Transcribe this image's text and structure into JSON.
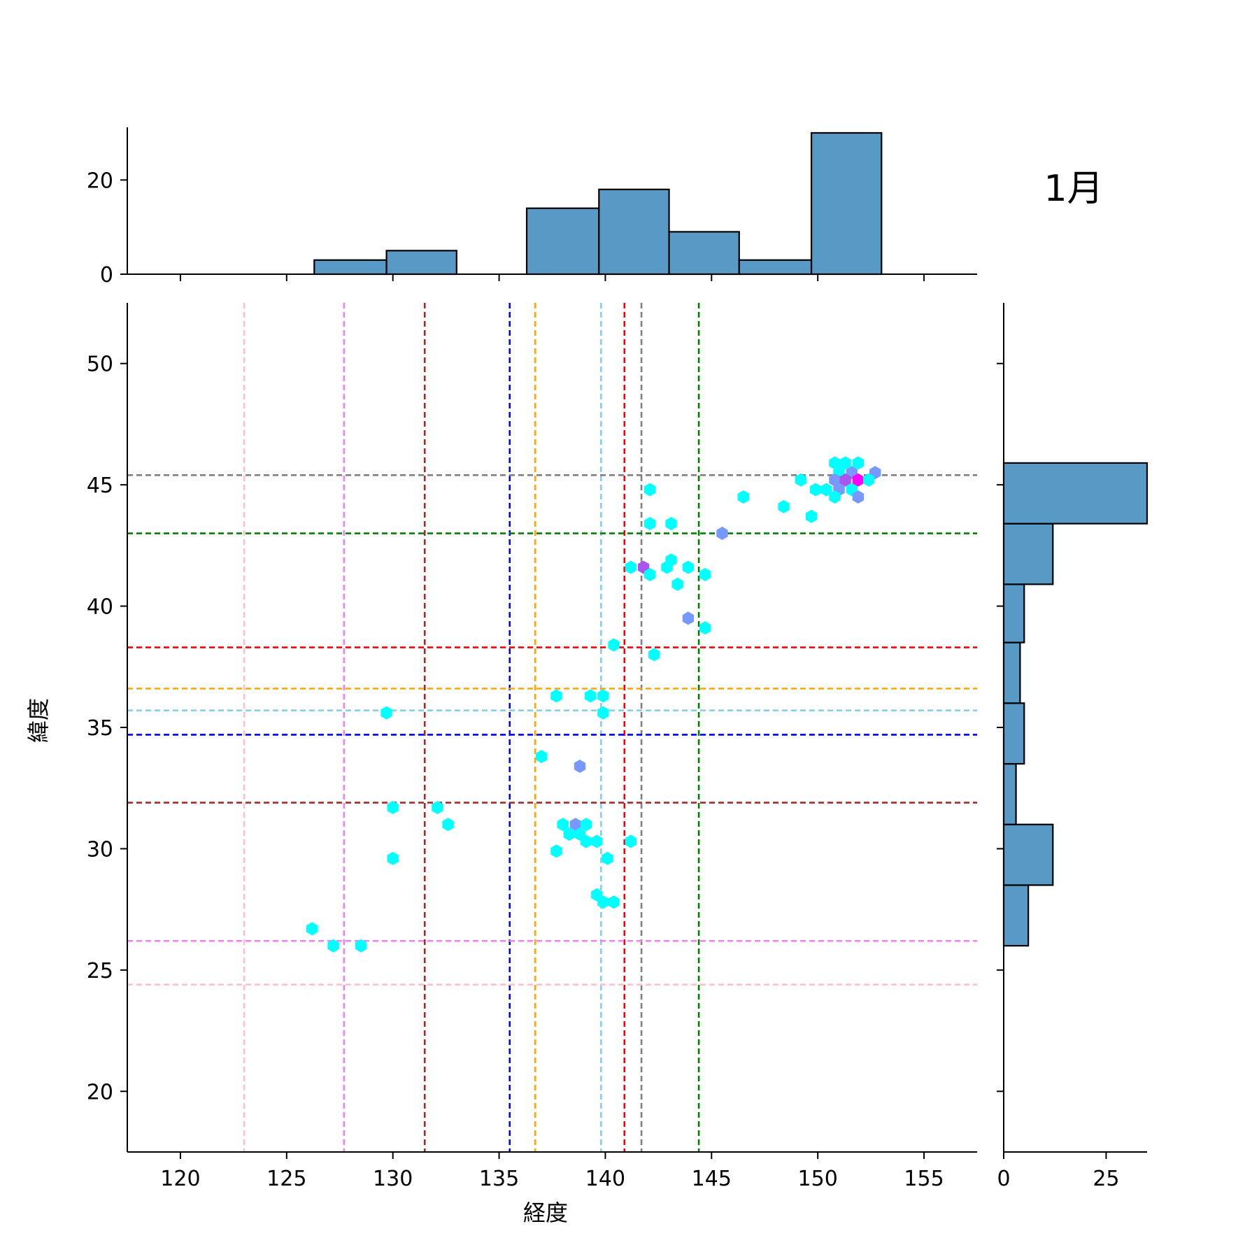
{
  "chart_data": {
    "type": "hexbin-joint",
    "month_label": "1月",
    "xlabel": "経度",
    "ylabel": "緯度",
    "xlim": [
      117.5,
      157.5
    ],
    "ylim": [
      17.5,
      52.5
    ],
    "xticks": [
      "120",
      "125",
      "130",
      "135",
      "140",
      "145",
      "150",
      "155"
    ],
    "yticks": [
      "20",
      "25",
      "30",
      "35",
      "40",
      "45",
      "50"
    ],
    "grid": false,
    "vertical_lines": [
      {
        "x": 123.0,
        "color": "#ffc0cb"
      },
      {
        "x": 127.7,
        "color": "#ee82ee"
      },
      {
        "x": 131.5,
        "color": "#a52a2a"
      },
      {
        "x": 135.5,
        "color": "#0000ff"
      },
      {
        "x": 136.7,
        "color": "#ffa500"
      },
      {
        "x": 139.8,
        "color": "#87ceeb"
      },
      {
        "x": 140.9,
        "color": "#ff0000"
      },
      {
        "x": 141.7,
        "color": "#808080"
      },
      {
        "x": 144.4,
        "color": "#008000"
      }
    ],
    "horizontal_lines": [
      {
        "y": 45.4,
        "color": "#808080"
      },
      {
        "y": 43.0,
        "color": "#008000"
      },
      {
        "y": 38.3,
        "color": "#ff0000"
      },
      {
        "y": 36.6,
        "color": "#ffa500"
      },
      {
        "y": 35.7,
        "color": "#87ceeb"
      },
      {
        "y": 34.7,
        "color": "#0000ff"
      },
      {
        "y": 31.9,
        "color": "#a52a2a"
      },
      {
        "y": 26.2,
        "color": "#ee82ee"
      },
      {
        "y": 24.4,
        "color": "#ffc0cb"
      }
    ],
    "hexbins": [
      {
        "x": 150.8,
        "y": 45.9,
        "c": 1
      },
      {
        "x": 151.3,
        "y": 45.9,
        "c": 1
      },
      {
        "x": 151.9,
        "y": 45.9,
        "c": 1
      },
      {
        "x": 151.0,
        "y": 45.5,
        "c": 1
      },
      {
        "x": 151.6,
        "y": 45.5,
        "c": 2
      },
      {
        "x": 152.7,
        "y": 45.5,
        "c": 2
      },
      {
        "x": 149.2,
        "y": 45.2,
        "c": 1
      },
      {
        "x": 150.8,
        "y": 45.2,
        "c": 2
      },
      {
        "x": 151.3,
        "y": 45.2,
        "c": 3
      },
      {
        "x": 151.9,
        "y": 45.2,
        "c": 5
      },
      {
        "x": 152.4,
        "y": 45.2,
        "c": 1
      },
      {
        "x": 149.9,
        "y": 44.8,
        "c": 1
      },
      {
        "x": 150.4,
        "y": 44.8,
        "c": 1
      },
      {
        "x": 151.0,
        "y": 44.8,
        "c": 2
      },
      {
        "x": 151.6,
        "y": 44.8,
        "c": 1
      },
      {
        "x": 142.1,
        "y": 44.8,
        "c": 1
      },
      {
        "x": 146.5,
        "y": 44.5,
        "c": 1
      },
      {
        "x": 150.8,
        "y": 44.5,
        "c": 1
      },
      {
        "x": 151.9,
        "y": 44.5,
        "c": 2
      },
      {
        "x": 148.4,
        "y": 44.1,
        "c": 1
      },
      {
        "x": 149.7,
        "y": 43.7,
        "c": 1
      },
      {
        "x": 142.1,
        "y": 43.4,
        "c": 1
      },
      {
        "x": 143.1,
        "y": 43.4,
        "c": 1
      },
      {
        "x": 145.5,
        "y": 43.0,
        "c": 2
      },
      {
        "x": 143.1,
        "y": 41.9,
        "c": 1
      },
      {
        "x": 141.2,
        "y": 41.6,
        "c": 1
      },
      {
        "x": 141.8,
        "y": 41.6,
        "c": 3
      },
      {
        "x": 142.9,
        "y": 41.6,
        "c": 1
      },
      {
        "x": 143.9,
        "y": 41.6,
        "c": 1
      },
      {
        "x": 142.1,
        "y": 41.3,
        "c": 1
      },
      {
        "x": 144.7,
        "y": 41.3,
        "c": 1
      },
      {
        "x": 143.4,
        "y": 40.9,
        "c": 1
      },
      {
        "x": 143.9,
        "y": 39.5,
        "c": 2
      },
      {
        "x": 144.7,
        "y": 39.1,
        "c": 1
      },
      {
        "x": 140.4,
        "y": 38.4,
        "c": 1
      },
      {
        "x": 142.3,
        "y": 38.0,
        "c": 1
      },
      {
        "x": 137.7,
        "y": 36.3,
        "c": 1
      },
      {
        "x": 139.3,
        "y": 36.3,
        "c": 1
      },
      {
        "x": 139.9,
        "y": 36.3,
        "c": 1
      },
      {
        "x": 129.7,
        "y": 35.6,
        "c": 1
      },
      {
        "x": 139.9,
        "y": 35.6,
        "c": 1
      },
      {
        "x": 137.0,
        "y": 33.8,
        "c": 1
      },
      {
        "x": 138.8,
        "y": 33.4,
        "c": 2
      },
      {
        "x": 130.0,
        "y": 31.7,
        "c": 1
      },
      {
        "x": 132.1,
        "y": 31.7,
        "c": 1
      },
      {
        "x": 132.6,
        "y": 31.0,
        "c": 1
      },
      {
        "x": 138.0,
        "y": 31.0,
        "c": 1
      },
      {
        "x": 138.6,
        "y": 31.0,
        "c": 2
      },
      {
        "x": 139.1,
        "y": 31.0,
        "c": 1
      },
      {
        "x": 138.3,
        "y": 30.6,
        "c": 1
      },
      {
        "x": 138.8,
        "y": 30.6,
        "c": 1
      },
      {
        "x": 139.1,
        "y": 30.3,
        "c": 1
      },
      {
        "x": 139.6,
        "y": 30.3,
        "c": 1
      },
      {
        "x": 141.2,
        "y": 30.3,
        "c": 1
      },
      {
        "x": 137.7,
        "y": 29.9,
        "c": 1
      },
      {
        "x": 130.0,
        "y": 29.6,
        "c": 1
      },
      {
        "x": 140.1,
        "y": 29.6,
        "c": 1
      },
      {
        "x": 139.6,
        "y": 28.1,
        "c": 1
      },
      {
        "x": 139.9,
        "y": 27.8,
        "c": 1
      },
      {
        "x": 140.4,
        "y": 27.8,
        "c": 1
      },
      {
        "x": 126.2,
        "y": 26.7,
        "c": 1
      },
      {
        "x": 127.2,
        "y": 26.0,
        "c": 1
      },
      {
        "x": 128.5,
        "y": 26.0,
        "c": 1
      }
    ],
    "hex_colors": {
      "1": "#00ffff",
      "2": "#7799ff",
      "3": "#aa55ee",
      "5": "#ff00ff"
    },
    "top_histogram": {
      "ylim": [
        0,
        30
      ],
      "yticks": [
        "0",
        "20"
      ],
      "bins": [
        {
          "x0": 126.3,
          "x1": 129.7,
          "count": 3
        },
        {
          "x0": 129.7,
          "x1": 133.0,
          "count": 5
        },
        {
          "x0": 133.0,
          "x1": 136.3,
          "count": 0
        },
        {
          "x0": 136.3,
          "x1": 139.7,
          "count": 14
        },
        {
          "x0": 139.7,
          "x1": 143.0,
          "count": 18
        },
        {
          "x0": 143.0,
          "x1": 146.3,
          "count": 9
        },
        {
          "x0": 146.3,
          "x1": 149.7,
          "count": 3
        },
        {
          "x0": 149.7,
          "x1": 153.0,
          "count": 30
        }
      ]
    },
    "right_histogram": {
      "xlim": [
        0,
        35
      ],
      "xticks": [
        "0",
        "25"
      ],
      "bins": [
        {
          "y0": 26.0,
          "y1": 28.5,
          "count": 6
        },
        {
          "y0": 28.5,
          "y1": 31.0,
          "count": 12
        },
        {
          "y0": 31.0,
          "y1": 33.5,
          "count": 3
        },
        {
          "y0": 33.5,
          "y1": 36.0,
          "count": 5
        },
        {
          "y0": 36.0,
          "y1": 38.5,
          "count": 4
        },
        {
          "y0": 38.5,
          "y1": 40.9,
          "count": 5
        },
        {
          "y0": 40.9,
          "y1": 43.4,
          "count": 12
        },
        {
          "y0": 43.4,
          "y1": 45.9,
          "count": 35
        }
      ]
    },
    "bar_color": "#5899c5"
  }
}
